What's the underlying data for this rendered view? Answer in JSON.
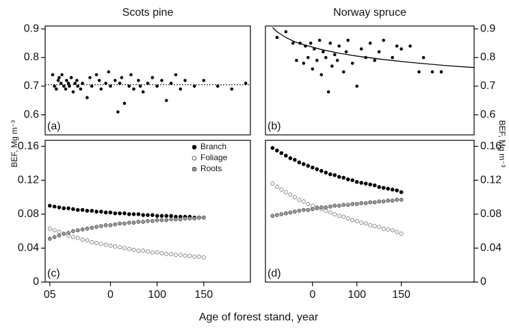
{
  "figure": {
    "xlabel": "Age of forest stand, year"
  },
  "chart_data": [
    {
      "type": "scatter",
      "title": "Scots pine",
      "panel_label": "(a)",
      "ylabel": "BEF, Mg m⁻³",
      "yaxis_side": "left",
      "xlim": [
        -20,
        200
      ],
      "ylim": [
        0.53,
        0.91
      ],
      "yticks": [
        0.6,
        0.7,
        0.8,
        0.9
      ],
      "color": "#000000",
      "x": [
        -12,
        -10,
        -8,
        -6,
        -5,
        -3,
        -2,
        0,
        2,
        3,
        5,
        6,
        8,
        10,
        12,
        14,
        15,
        18,
        20,
        25,
        28,
        30,
        35,
        38,
        40,
        45,
        48,
        50,
        55,
        58,
        60,
        62,
        65,
        70,
        72,
        75,
        80,
        82,
        85,
        90,
        95,
        100,
        105,
        110,
        115,
        120,
        125,
        130,
        140,
        150,
        165,
        180,
        195
      ],
      "y": [
        0.74,
        0.7,
        0.69,
        0.72,
        0.73,
        0.71,
        0.74,
        0.7,
        0.69,
        0.72,
        0.71,
        0.7,
        0.73,
        0.68,
        0.71,
        0.72,
        0.7,
        0.69,
        0.71,
        0.66,
        0.73,
        0.7,
        0.74,
        0.72,
        0.69,
        0.71,
        0.75,
        0.7,
        0.72,
        0.61,
        0.71,
        0.73,
        0.64,
        0.7,
        0.74,
        0.69,
        0.72,
        0.7,
        0.68,
        0.71,
        0.73,
        0.7,
        0.72,
        0.65,
        0.71,
        0.74,
        0.69,
        0.72,
        0.7,
        0.72,
        0.7,
        0.69,
        0.71
      ],
      "reference_y": 0.705
    },
    {
      "type": "scatter",
      "title": "Norway spruce",
      "panel_label": "(b)",
      "ylabel": "BEF, Mg m⁻³",
      "yaxis_side": "right",
      "xlim": [
        -3,
        232
      ],
      "ylim": [
        0.53,
        0.91
      ],
      "yticks": [
        0.6,
        0.7,
        0.8,
        0.9
      ],
      "color": "#000000",
      "x": [
        10,
        20,
        28,
        32,
        36,
        40,
        42,
        45,
        48,
        50,
        52,
        55,
        58,
        60,
        62,
        65,
        68,
        70,
        72,
        75,
        78,
        80,
        85,
        88,
        90,
        95,
        100,
        105,
        110,
        115,
        120,
        125,
        130,
        140,
        145,
        150,
        160,
        170,
        175,
        185,
        195
      ],
      "y": [
        0.87,
        0.89,
        0.85,
        0.79,
        0.85,
        0.78,
        0.84,
        0.8,
        0.85,
        0.76,
        0.83,
        0.79,
        0.86,
        0.74,
        0.82,
        0.8,
        0.68,
        0.85,
        0.77,
        0.81,
        0.79,
        0.84,
        0.75,
        0.82,
        0.86,
        0.78,
        0.7,
        0.83,
        0.8,
        0.85,
        0.79,
        0.82,
        0.86,
        0.8,
        0.84,
        0.83,
        0.84,
        0.75,
        0.8,
        0.75,
        0.75
      ],
      "fit": {
        "x": [
          5,
          10,
          20,
          30,
          40,
          60,
          80,
          100,
          130,
          160,
          200,
          232
        ],
        "y": [
          0.905,
          0.89,
          0.87,
          0.855,
          0.845,
          0.828,
          0.815,
          0.805,
          0.793,
          0.783,
          0.772,
          0.765
        ]
      }
    },
    {
      "type": "scatter",
      "panel_label": "(c)",
      "yaxis_side": "left",
      "legend": "upper right",
      "xlim": [
        -20,
        200
      ],
      "ylim": [
        0,
        0.167
      ],
      "yticks": [
        0,
        0.04,
        0.08,
        0.12,
        0.16
      ],
      "xticks": [
        {
          "value": -15,
          "label": "05"
        },
        {
          "value": 50,
          "label": "0"
        },
        100,
        150
      ],
      "x": [
        -15,
        -10,
        -5,
        0,
        5,
        10,
        15,
        20,
        25,
        30,
        35,
        40,
        45,
        50,
        55,
        60,
        65,
        70,
        75,
        80,
        85,
        90,
        95,
        100,
        105,
        110,
        115,
        120,
        125,
        130,
        135,
        140,
        145,
        150
      ],
      "series": [
        {
          "name": "Branch",
          "color": "#000000",
          "values": [
            0.09,
            0.089,
            0.088,
            0.087,
            0.087,
            0.086,
            0.085,
            0.085,
            0.084,
            0.084,
            0.083,
            0.083,
            0.082,
            0.082,
            0.081,
            0.081,
            0.081,
            0.08,
            0.08,
            0.08,
            0.079,
            0.079,
            0.079,
            0.078,
            0.078,
            0.078,
            0.078,
            0.077,
            0.077,
            0.077,
            0.077,
            0.076,
            0.076,
            0.076
          ]
        },
        {
          "name": "Foliage",
          "color": "#ffffff",
          "values": [
            0.063,
            0.061,
            0.059,
            0.057,
            0.055,
            0.053,
            0.052,
            0.05,
            0.049,
            0.047,
            0.046,
            0.045,
            0.044,
            0.043,
            0.042,
            0.041,
            0.04,
            0.039,
            0.038,
            0.037,
            0.037,
            0.036,
            0.035,
            0.035,
            0.034,
            0.033,
            0.033,
            0.032,
            0.032,
            0.031,
            0.031,
            0.03,
            0.03,
            0.029
          ]
        },
        {
          "name": "Roots",
          "color": "#999999",
          "values": [
            0.051,
            0.053,
            0.055,
            0.057,
            0.058,
            0.06,
            0.061,
            0.062,
            0.063,
            0.064,
            0.065,
            0.066,
            0.067,
            0.067,
            0.068,
            0.069,
            0.069,
            0.07,
            0.07,
            0.071,
            0.071,
            0.072,
            0.072,
            0.073,
            0.073,
            0.073,
            0.074,
            0.074,
            0.074,
            0.075,
            0.075,
            0.075,
            0.076,
            0.076
          ]
        }
      ]
    },
    {
      "type": "scatter",
      "panel_label": "(d)",
      "yaxis_side": "right",
      "xlim": [
        -3,
        232
      ],
      "ylim": [
        0,
        0.167
      ],
      "yticks": [
        0,
        0.04,
        0.08,
        0.12,
        0.16
      ],
      "xticks": [
        {
          "value": 50,
          "label": "0"
        },
        100,
        150
      ],
      "x": [
        5,
        10,
        15,
        20,
        25,
        30,
        35,
        40,
        45,
        50,
        55,
        60,
        65,
        70,
        75,
        80,
        85,
        90,
        95,
        100,
        105,
        110,
        115,
        120,
        125,
        130,
        135,
        140,
        145,
        150
      ],
      "series": [
        {
          "name": "Branch",
          "color": "#000000",
          "values": [
            0.158,
            0.155,
            0.152,
            0.149,
            0.146,
            0.144,
            0.141,
            0.139,
            0.137,
            0.135,
            0.133,
            0.131,
            0.129,
            0.127,
            0.126,
            0.124,
            0.123,
            0.121,
            0.12,
            0.118,
            0.117,
            0.116,
            0.115,
            0.114,
            0.112,
            0.111,
            0.11,
            0.109,
            0.108,
            0.106
          ]
        },
        {
          "name": "Foliage",
          "color": "#ffffff",
          "values": [
            0.116,
            0.112,
            0.109,
            0.106,
            0.103,
            0.1,
            0.097,
            0.095,
            0.092,
            0.09,
            0.088,
            0.086,
            0.084,
            0.082,
            0.08,
            0.078,
            0.077,
            0.075,
            0.073,
            0.072,
            0.07,
            0.069,
            0.067,
            0.066,
            0.065,
            0.063,
            0.062,
            0.061,
            0.059,
            0.057
          ]
        },
        {
          "name": "Roots",
          "color": "#999999",
          "values": [
            0.078,
            0.079,
            0.08,
            0.081,
            0.082,
            0.083,
            0.084,
            0.085,
            0.085,
            0.086,
            0.087,
            0.088,
            0.088,
            0.089,
            0.09,
            0.09,
            0.091,
            0.091,
            0.092,
            0.092,
            0.093,
            0.093,
            0.094,
            0.094,
            0.095,
            0.095,
            0.096,
            0.096,
            0.097,
            0.097
          ]
        }
      ]
    }
  ]
}
